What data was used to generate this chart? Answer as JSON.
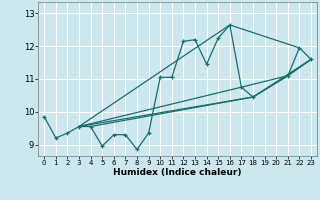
{
  "xlabel": "Humidex (Indice chaleur)",
  "xlim": [
    -0.5,
    23.5
  ],
  "ylim": [
    8.65,
    13.35
  ],
  "xticks": [
    0,
    1,
    2,
    3,
    4,
    5,
    6,
    7,
    8,
    9,
    10,
    11,
    12,
    13,
    14,
    15,
    16,
    17,
    18,
    19,
    20,
    21,
    22,
    23
  ],
  "yticks": [
    9,
    10,
    11,
    12,
    13
  ],
  "bg_color": "#cce8ee",
  "line_color": "#1a6e6a",
  "grid_color": "#ffffff",
  "main_line": {
    "x": [
      0,
      1,
      2,
      3,
      4,
      5,
      6,
      7,
      8,
      9,
      10,
      11,
      12,
      13,
      14,
      15,
      16,
      17,
      18,
      21,
      22,
      23
    ],
    "y": [
      9.85,
      9.2,
      9.35,
      9.55,
      9.55,
      8.95,
      9.3,
      9.3,
      8.85,
      9.35,
      11.05,
      11.05,
      12.15,
      12.2,
      11.45,
      12.25,
      12.65,
      10.75,
      10.45,
      11.1,
      11.95,
      11.6
    ]
  },
  "trend_lines": [
    {
      "x": [
        3,
        16,
        22
      ],
      "y": [
        9.55,
        12.65,
        11.95
      ]
    },
    {
      "x": [
        3,
        17,
        21,
        23
      ],
      "y": [
        9.55,
        10.75,
        11.1,
        11.6
      ]
    },
    {
      "x": [
        3,
        18,
        21,
        23
      ],
      "y": [
        9.55,
        10.45,
        11.1,
        11.6
      ]
    },
    {
      "x": [
        4,
        18,
        23
      ],
      "y": [
        9.55,
        10.45,
        11.6
      ]
    }
  ]
}
